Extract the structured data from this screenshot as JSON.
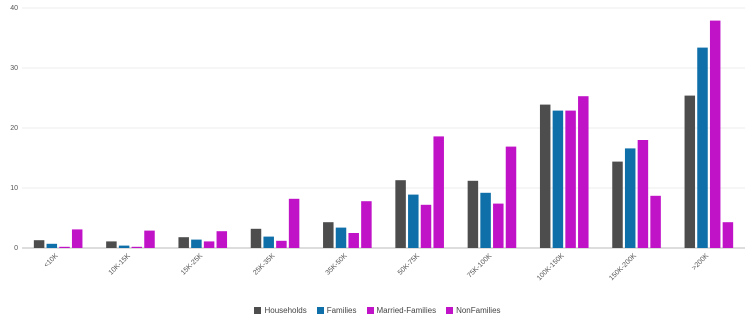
{
  "chart_data": {
    "type": "bar",
    "categories": [
      "<10K",
      "10K-15K",
      "15K-25K",
      "25K-35K",
      "35K-50K",
      "50K-75K",
      "75K-100K",
      "100K-150K",
      "150K-200K",
      ">200K"
    ],
    "series": [
      {
        "name": "Households",
        "color": "#4d4d4d",
        "values": [
          1.3,
          1.1,
          1.8,
          3.2,
          4.3,
          11.3,
          11.2,
          23.9,
          14.4,
          25.4
        ]
      },
      {
        "name": "Families",
        "color": "#0f6fa8",
        "values": [
          0.7,
          0.4,
          1.4,
          1.9,
          3.4,
          8.9,
          9.2,
          22.9,
          16.6,
          33.4
        ]
      },
      {
        "name": "Married-Families",
        "color": "#c013c8",
        "values": [
          0.2,
          0.2,
          1.1,
          1.2,
          2.5,
          7.2,
          7.4,
          22.9,
          18.0,
          37.9
        ]
      },
      {
        "name": "NonFamilies",
        "color": "#c013c8",
        "values": [
          3.1,
          2.9,
          2.8,
          8.2,
          7.8,
          18.6,
          16.9,
          25.3,
          8.7,
          4.3
        ]
      }
    ],
    "yticks": [
      0,
      10,
      20,
      30,
      40
    ],
    "ylim": [
      0,
      40
    ],
    "grid": true,
    "legend_position": "bottom"
  }
}
